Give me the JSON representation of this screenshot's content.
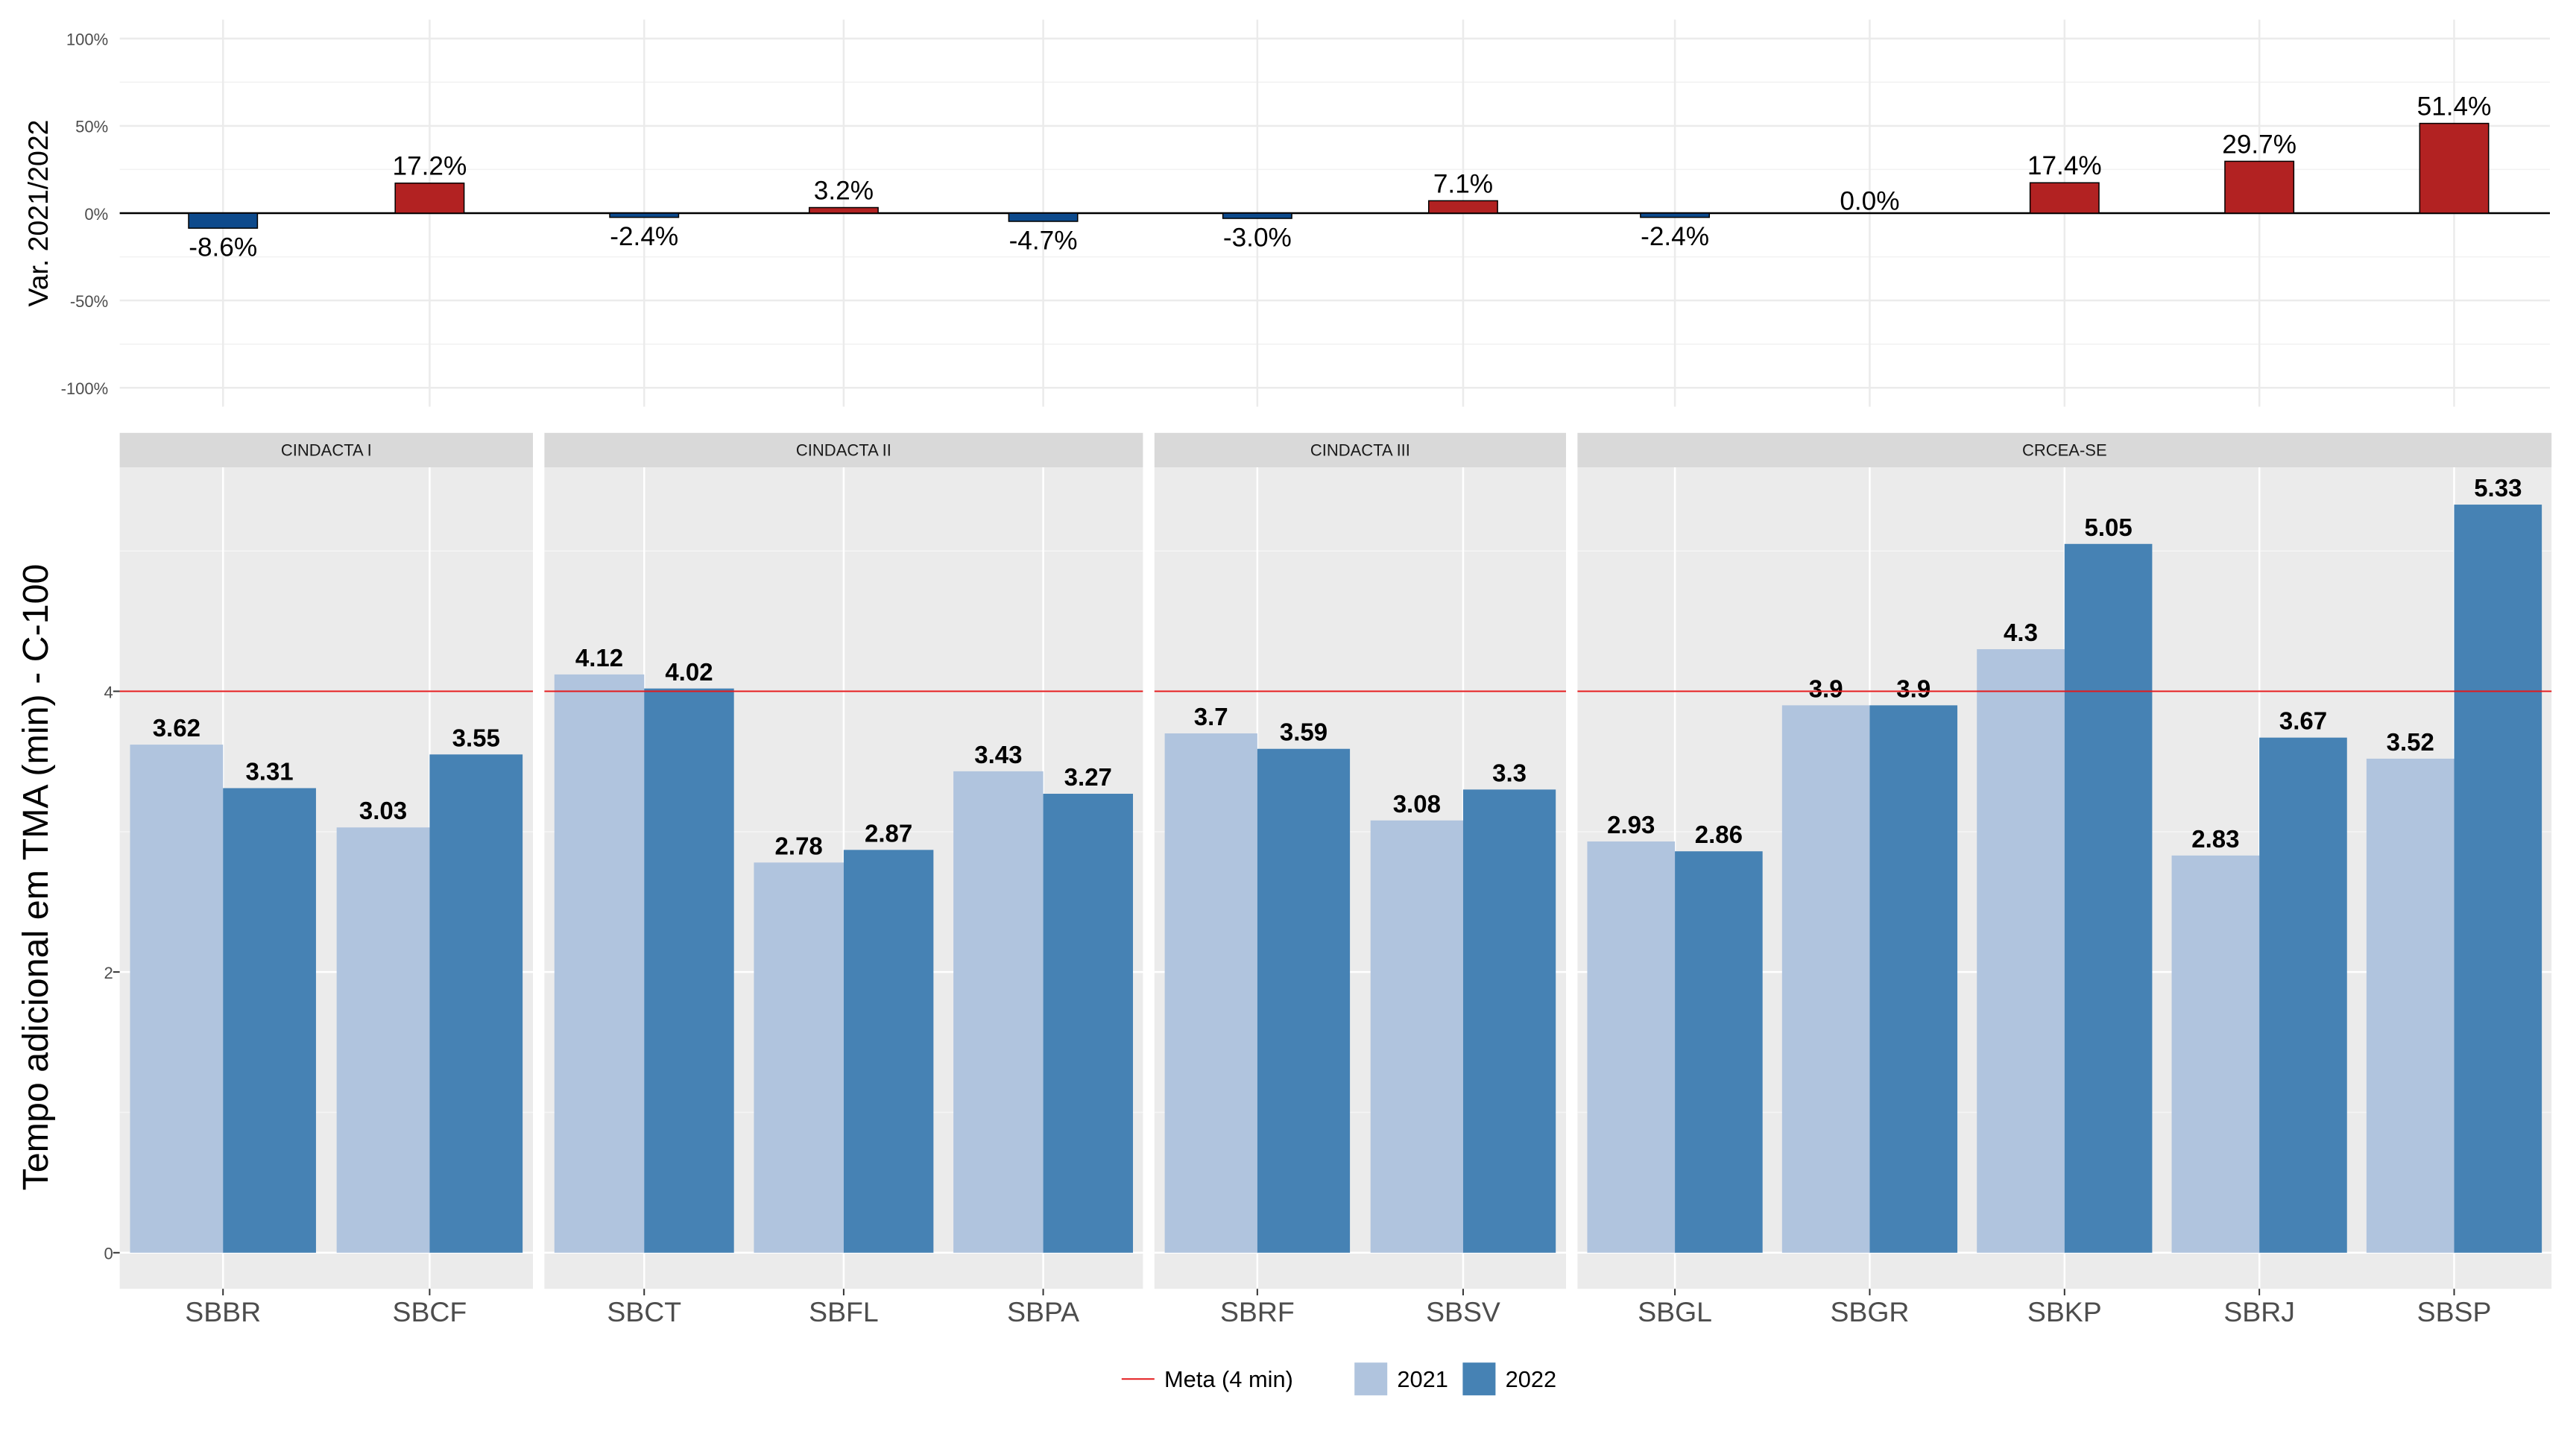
{
  "chart_data": [
    {
      "type": "bar",
      "ylabel": "Var. 2021/2022",
      "yticks": [
        "100%",
        "50%",
        "0%",
        "-50%",
        "-100%"
      ],
      "ytick_values": [
        100,
        50,
        0,
        -50,
        -100
      ],
      "ylim": [
        -110,
        110
      ],
      "x": [
        "SBBR",
        "SBCF",
        "SBCT",
        "SBFL",
        "SBPA",
        "SBRF",
        "SBSV",
        "SBGL",
        "SBGR",
        "SBKP",
        "SBRJ",
        "SBSP"
      ],
      "values": [
        -8.6,
        17.2,
        -2.4,
        3.2,
        -4.7,
        -3.0,
        7.1,
        -2.4,
        0.0,
        17.4,
        29.7,
        51.4
      ],
      "labels": [
        "-8.6%",
        "17.2%",
        "-2.4%",
        "3.2%",
        "-4.7%",
        "-3.0%",
        "7.1%",
        "-2.4%",
        "0.0%",
        "17.4%",
        "29.7%",
        "51.4%"
      ],
      "colors": {
        "positive": "#b22222",
        "negative": "#0d4a8c"
      },
      "grid": true
    },
    {
      "type": "bar",
      "ylabel": "Tempo adicional em TMA (min) - C-100",
      "yticks": [
        "0",
        "2",
        "4"
      ],
      "ytick_values": [
        0,
        2,
        4
      ],
      "ylim": [
        -0.25,
        5.65
      ],
      "reference_line": {
        "value": 4,
        "label": "Meta (4 min)",
        "color": "#e31a1c"
      },
      "legend": {
        "position": "bottom",
        "items": [
          "Meta (4 min)",
          "2021",
          "2022"
        ]
      },
      "series": [
        {
          "name": "2021",
          "color": "#b0c4de"
        },
        {
          "name": "2022",
          "color": "#4682b4"
        }
      ],
      "facets": [
        {
          "title": "CINDACTA I",
          "categories": [
            {
              "name": "SBBR",
              "v2021": 3.62,
              "v2022": 3.31,
              "l2021": "3.62",
              "l2022": "3.31"
            },
            {
              "name": "SBCF",
              "v2021": 3.03,
              "v2022": 3.55,
              "l2021": "3.03",
              "l2022": "3.55"
            }
          ]
        },
        {
          "title": "CINDACTA II",
          "categories": [
            {
              "name": "SBCT",
              "v2021": 4.12,
              "v2022": 4.02,
              "l2021": "4.12",
              "l2022": "4.02"
            },
            {
              "name": "SBFL",
              "v2021": 2.78,
              "v2022": 2.87,
              "l2021": "2.78",
              "l2022": "2.87"
            },
            {
              "name": "SBPA",
              "v2021": 3.43,
              "v2022": 3.27,
              "l2021": "3.43",
              "l2022": "3.27"
            }
          ]
        },
        {
          "title": "CINDACTA III",
          "categories": [
            {
              "name": "SBRF",
              "v2021": 3.7,
              "v2022": 3.59,
              "l2021": "3.7",
              "l2022": "3.59"
            },
            {
              "name": "SBSV",
              "v2021": 3.08,
              "v2022": 3.3,
              "l2021": "3.08",
              "l2022": "3.3"
            }
          ]
        },
        {
          "title": "CRCEA-SE",
          "categories": [
            {
              "name": "SBGL",
              "v2021": 2.93,
              "v2022": 2.86,
              "l2021": "2.93",
              "l2022": "2.86"
            },
            {
              "name": "SBGR",
              "v2021": 3.9,
              "v2022": 3.9,
              "l2021": "3.9",
              "l2022": "3.9"
            },
            {
              "name": "SBKP",
              "v2021": 4.3,
              "v2022": 5.05,
              "l2021": "4.3",
              "l2022": "5.05"
            },
            {
              "name": "SBRJ",
              "v2021": 2.83,
              "v2022": 3.67,
              "l2021": "2.83",
              "l2022": "3.67"
            },
            {
              "name": "SBSP",
              "v2021": 3.52,
              "v2022": 5.33,
              "l2021": "3.52",
              "l2022": "5.33"
            }
          ]
        }
      ]
    }
  ]
}
